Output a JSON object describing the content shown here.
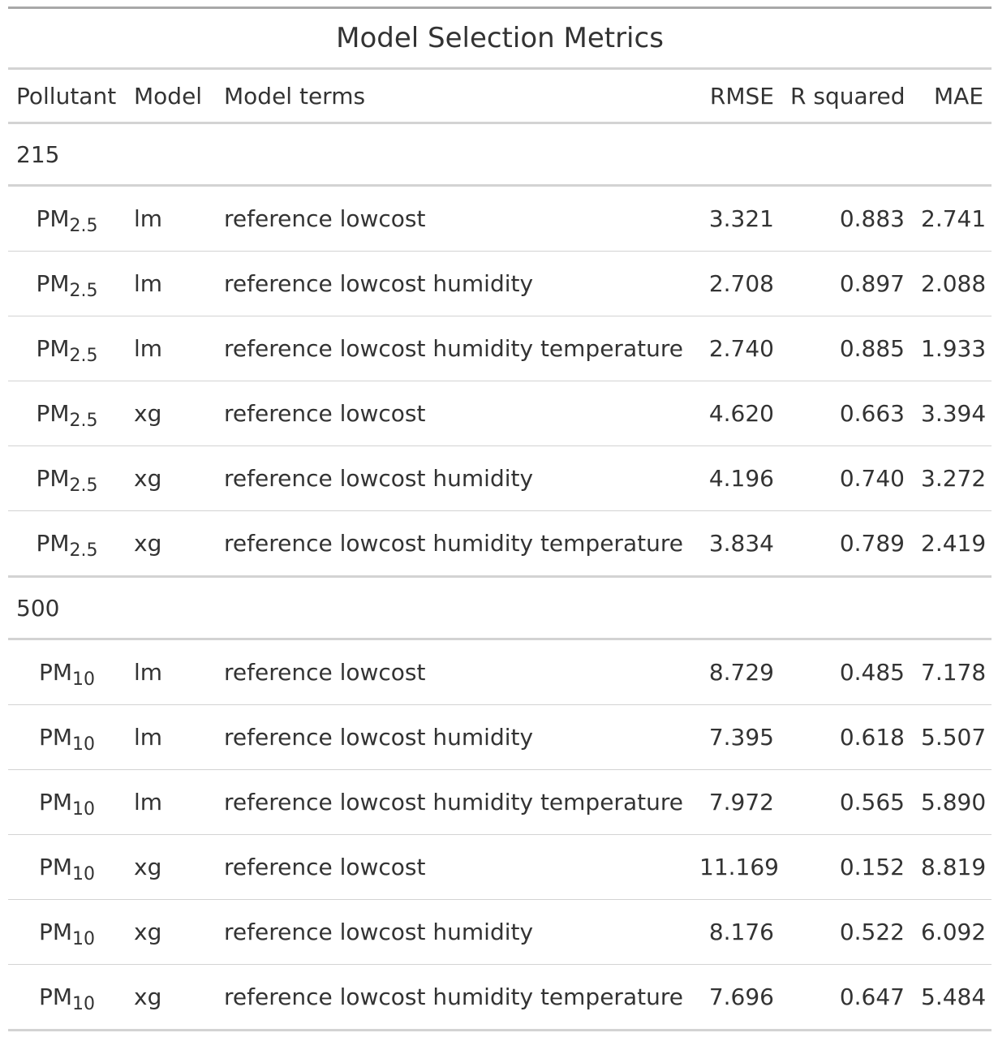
{
  "title": "Model Selection Metrics",
  "columns": [
    "Pollutant",
    "Model",
    "Model terms",
    "RMSE",
    "R squared",
    "MAE"
  ],
  "groups": [
    {
      "label": "215",
      "rows": [
        {
          "pollutant_base": "PM",
          "pollutant_sub": "2.5",
          "model": "lm",
          "terms": "reference lowcost",
          "rmse": "3.321",
          "rsq": "0.883",
          "mae": "2.741"
        },
        {
          "pollutant_base": "PM",
          "pollutant_sub": "2.5",
          "model": "lm",
          "terms": "reference lowcost humidity",
          "rmse": "2.708",
          "rsq": "0.897",
          "mae": "2.088"
        },
        {
          "pollutant_base": "PM",
          "pollutant_sub": "2.5",
          "model": "lm",
          "terms": "reference lowcost humidity temperature",
          "rmse": "2.740",
          "rsq": "0.885",
          "mae": "1.933"
        },
        {
          "pollutant_base": "PM",
          "pollutant_sub": "2.5",
          "model": "xg",
          "terms": "reference lowcost",
          "rmse": "4.620",
          "rsq": "0.663",
          "mae": "3.394"
        },
        {
          "pollutant_base": "PM",
          "pollutant_sub": "2.5",
          "model": "xg",
          "terms": "reference lowcost humidity",
          "rmse": "4.196",
          "rsq": "0.740",
          "mae": "3.272"
        },
        {
          "pollutant_base": "PM",
          "pollutant_sub": "2.5",
          "model": "xg",
          "terms": "reference lowcost humidity temperature",
          "rmse": "3.834",
          "rsq": "0.789",
          "mae": "2.419"
        }
      ]
    },
    {
      "label": "500",
      "rows": [
        {
          "pollutant_base": "PM",
          "pollutant_sub": "10",
          "model": "lm",
          "terms": "reference lowcost",
          "rmse": "8.729",
          "rsq": "0.485",
          "mae": "7.178"
        },
        {
          "pollutant_base": "PM",
          "pollutant_sub": "10",
          "model": "lm",
          "terms": "reference lowcost humidity",
          "rmse": "7.395",
          "rsq": "0.618",
          "mae": "5.507"
        },
        {
          "pollutant_base": "PM",
          "pollutant_sub": "10",
          "model": "lm",
          "terms": "reference lowcost humidity temperature",
          "rmse": "7.972",
          "rsq": "0.565",
          "mae": "5.890"
        },
        {
          "pollutant_base": "PM",
          "pollutant_sub": "10",
          "model": "xg",
          "terms": "reference lowcost",
          "rmse": "11.169",
          "rsq": "0.152",
          "mae": "8.819"
        },
        {
          "pollutant_base": "PM",
          "pollutant_sub": "10",
          "model": "xg",
          "terms": "reference lowcost humidity",
          "rmse": "8.176",
          "rsq": "0.522",
          "mae": "6.092"
        },
        {
          "pollutant_base": "PM",
          "pollutant_sub": "10",
          "model": "xg",
          "terms": "reference lowcost humidity temperature",
          "rmse": "7.696",
          "rsq": "0.647",
          "mae": "5.484"
        }
      ]
    }
  ]
}
